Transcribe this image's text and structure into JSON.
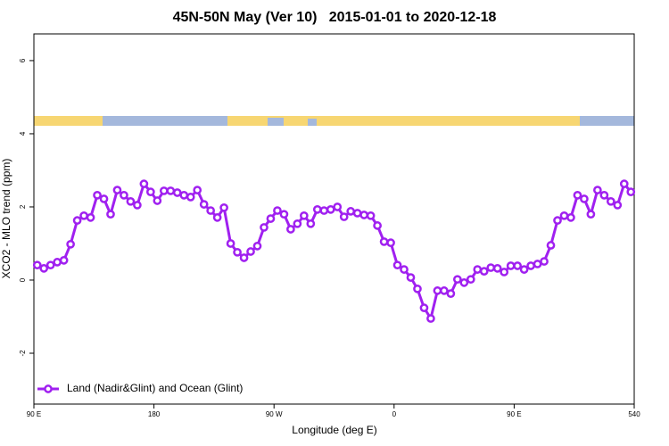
{
  "chart_data": {
    "type": "line",
    "title": "45N-50N May (Ver 10)   2015-01-01 to 2020-12-18",
    "x_label": "Longitude (deg E)",
    "y_label": "XCO2 - MLO trend (ppm)",
    "xlim": [
      90,
      540
    ],
    "xticks": [
      {
        "value": 90,
        "label": "90 E"
      },
      180,
      {
        "value": 270,
        "label": "90 W"
      },
      {
        "value": 360,
        "label": "0"
      },
      {
        "value": 450,
        "label": "90 E"
      },
      540
    ],
    "ylim": [
      -3.39,
      6.73
    ],
    "yticks": [
      -2,
      0,
      2,
      4,
      6
    ],
    "legend": "bottomleft",
    "x": [
      92.5,
      97.5,
      102.5,
      107.5,
      112.5,
      117.5,
      122.5,
      127.5,
      132.5,
      137.5,
      142.5,
      147.5,
      152.5,
      157.5,
      162.5,
      167.5,
      172.5,
      177.5,
      182.5,
      187.5,
      192.5,
      197.5,
      202.5,
      207.5,
      212.5,
      217.5,
      222.5,
      227.5,
      232.5,
      237.5,
      242.5,
      247.5,
      252.5,
      257.5,
      262.5,
      267.5,
      272.5,
      277.5,
      282.5,
      287.5,
      292.5,
      297.5,
      302.5,
      307.5,
      312.5,
      317.5,
      322.5,
      327.5,
      332.5,
      337.5,
      342.5,
      347.5,
      352.5,
      357.5,
      362.5,
      367.5,
      372.5,
      377.5,
      382.5,
      387.5,
      392.5,
      397.5,
      402.5,
      407.5,
      412.5,
      417.5,
      422.5,
      427.5,
      432.5,
      437.5,
      442.5,
      447.5,
      452.5,
      457.5,
      462.5,
      467.5,
      472.5,
      477.5,
      482.5,
      487.5,
      492.5,
      497.5,
      502.5,
      507.5,
      512.5,
      517.5,
      522.5,
      527.5,
      532.5,
      537.5
    ],
    "series": [
      {
        "name": "Land (Nadir&Glint) and Ocean (Glint)",
        "color": "#a020f0",
        "values": [
          0.41,
          0.32,
          0.41,
          0.49,
          0.54,
          0.98,
          1.63,
          1.76,
          1.71,
          2.32,
          2.22,
          1.8,
          2.46,
          2.32,
          2.15,
          2.05,
          2.63,
          2.41,
          2.17,
          2.44,
          2.44,
          2.39,
          2.32,
          2.27,
          2.46,
          2.07,
          1.9,
          1.71,
          1.98,
          1.0,
          0.76,
          0.61,
          0.78,
          0.93,
          1.44,
          1.68,
          1.9,
          1.8,
          1.39,
          1.54,
          1.76,
          1.54,
          1.93,
          1.9,
          1.93,
          2.0,
          1.73,
          1.88,
          1.83,
          1.78,
          1.76,
          1.49,
          1.05,
          1.02,
          0.41,
          0.29,
          0.07,
          -0.24,
          -0.76,
          -1.05,
          -0.29,
          -0.29,
          -0.37,
          0.02,
          -0.07,
          0.02,
          0.29,
          0.24,
          0.34,
          0.32,
          0.22,
          0.39,
          0.39,
          0.29,
          0.39,
          0.44,
          0.51,
          0.95,
          1.63,
          1.76,
          1.71,
          2.32,
          2.22,
          1.8,
          2.46,
          2.32,
          2.15,
          2.05,
          2.63,
          2.41
        ]
      }
    ]
  }
}
